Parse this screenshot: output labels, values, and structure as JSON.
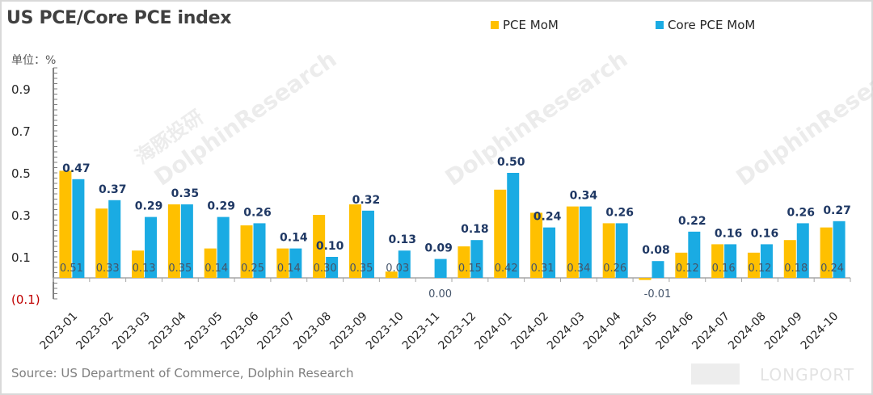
{
  "chart_data": {
    "type": "bar",
    "title": "US PCE/Core PCE index",
    "unit_label": "单位：%",
    "xlabel": "",
    "ylabel": "",
    "ylim": [
      -0.1,
      1.0
    ],
    "yticks": [
      -0.1,
      0.1,
      0.3,
      0.5,
      0.7,
      0.9
    ],
    "ytick_labels": [
      "(0.1)",
      "0.1",
      "0.3",
      "0.5",
      "0.7",
      "0.9"
    ],
    "grid": false,
    "legend_position": "top-right",
    "categories": [
      "2023-01",
      "2023-02",
      "2023-03",
      "2023-04",
      "2023-05",
      "2023-06",
      "2023-07",
      "2023-08",
      "2023-09",
      "2023-10",
      "2023-11",
      "2023-12",
      "2024-01",
      "2024-02",
      "2024-03",
      "2024-04",
      "2024-05",
      "2024-06",
      "2024-07",
      "2024-08",
      "2024-09",
      "2024-10"
    ],
    "series": [
      {
        "name": "PCE MoM",
        "color": "#FFC000",
        "values": [
          0.51,
          0.33,
          0.13,
          0.35,
          0.14,
          0.25,
          0.14,
          0.3,
          0.35,
          0.03,
          0.0,
          0.15,
          0.42,
          0.31,
          0.34,
          0.26,
          -0.01,
          0.12,
          0.16,
          0.12,
          0.18,
          0.24
        ],
        "labels": [
          "0.51",
          "0.33",
          "0.13",
          "0.35",
          "0.14",
          "0.25",
          "0.14",
          "0.30",
          "0.35",
          "0.03",
          "0.00",
          "0.15",
          "0.42",
          "0.31",
          "0.34",
          "0.26",
          "-0.01",
          "0.12",
          "0.16",
          "0.12",
          "0.18",
          "0.24"
        ]
      },
      {
        "name": "Core PCE MoM",
        "color": "#1AABE3",
        "values": [
          0.47,
          0.37,
          0.29,
          0.35,
          0.29,
          0.26,
          0.14,
          0.1,
          0.32,
          0.13,
          0.09,
          0.18,
          0.5,
          0.24,
          0.34,
          0.26,
          0.08,
          0.22,
          0.16,
          0.16,
          0.26,
          0.27
        ],
        "labels": [
          "0.47",
          "0.37",
          "0.29",
          "0.35",
          "0.29",
          "0.26",
          "0.14",
          "0.10",
          "0.32",
          "0.13",
          "0.09",
          "0.18",
          "0.50",
          "0.24",
          "0.34",
          "0.26",
          "0.08",
          "0.22",
          "0.16",
          "0.16",
          "0.26",
          "0.27"
        ]
      }
    ],
    "source": "Source: US Department of Commerce, Dolphin Research"
  },
  "watermarks": {
    "brand_cn": "海豚投研",
    "brand_en": "DolphinResearch",
    "corner": "LONGPORT"
  }
}
